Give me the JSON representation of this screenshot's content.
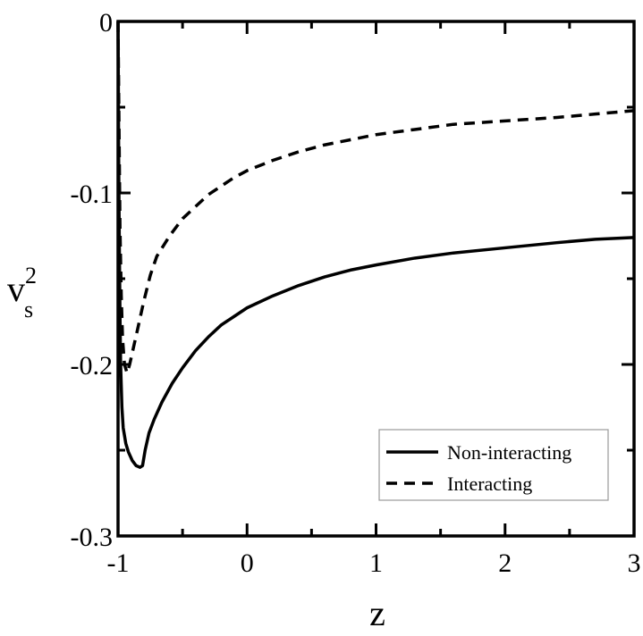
{
  "chart_data": {
    "type": "line",
    "title": "",
    "xlabel": "z",
    "ylabel": {
      "base": "v",
      "superscript": "2",
      "subscript": "s"
    },
    "xlim": [
      -1,
      3
    ],
    "ylim": [
      -0.3,
      0
    ],
    "x_ticks": [
      -1,
      0,
      1,
      2,
      3
    ],
    "x_tick_labels": [
      "-1",
      "0",
      "1",
      "2",
      "3"
    ],
    "y_ticks": [
      0,
      -0.1,
      -0.2,
      -0.3
    ],
    "y_tick_labels": [
      "0",
      "-0.1",
      "-0.2",
      "-0.3"
    ],
    "grid": false,
    "legend_position": "bottom-right",
    "series": [
      {
        "name": "Non-interacting",
        "style": "solid",
        "color": "#000000",
        "points": [
          [
            -1.0,
            0.0
          ],
          [
            -0.998,
            -0.03
          ],
          [
            -0.995,
            -0.08
          ],
          [
            -0.99,
            -0.13
          ],
          [
            -0.985,
            -0.17
          ],
          [
            -0.98,
            -0.2
          ],
          [
            -0.97,
            -0.225
          ],
          [
            -0.96,
            -0.237
          ],
          [
            -0.94,
            -0.246
          ],
          [
            -0.92,
            -0.251
          ],
          [
            -0.89,
            -0.256
          ],
          [
            -0.86,
            -0.259
          ],
          [
            -0.83,
            -0.26
          ],
          [
            -0.81,
            -0.259
          ],
          [
            -0.79,
            -0.25
          ],
          [
            -0.76,
            -0.24
          ],
          [
            -0.72,
            -0.232
          ],
          [
            -0.66,
            -0.222
          ],
          [
            -0.58,
            -0.211
          ],
          [
            -0.5,
            -0.202
          ],
          [
            -0.4,
            -0.192
          ],
          [
            -0.3,
            -0.184
          ],
          [
            -0.2,
            -0.177
          ],
          [
            -0.1,
            -0.172
          ],
          [
            0.0,
            -0.167
          ],
          [
            0.2,
            -0.16
          ],
          [
            0.4,
            -0.154
          ],
          [
            0.6,
            -0.149
          ],
          [
            0.8,
            -0.145
          ],
          [
            1.0,
            -0.142
          ],
          [
            1.3,
            -0.138
          ],
          [
            1.6,
            -0.135
          ],
          [
            2.0,
            -0.132
          ],
          [
            2.4,
            -0.129
          ],
          [
            2.7,
            -0.127
          ],
          [
            3.0,
            -0.126
          ]
        ]
      },
      {
        "name": "Interacting",
        "style": "dashed",
        "color": "#000000",
        "points": [
          [
            -1.0,
            0.0
          ],
          [
            -0.995,
            -0.04
          ],
          [
            -0.99,
            -0.08
          ],
          [
            -0.985,
            -0.12
          ],
          [
            -0.975,
            -0.16
          ],
          [
            -0.965,
            -0.185
          ],
          [
            -0.95,
            -0.2
          ],
          [
            -0.93,
            -0.205
          ],
          [
            -0.91,
            -0.2
          ],
          [
            -0.88,
            -0.19
          ],
          [
            -0.85,
            -0.18
          ],
          [
            -0.8,
            -0.163
          ],
          [
            -0.75,
            -0.148
          ],
          [
            -0.7,
            -0.137
          ],
          [
            -0.6,
            -0.125
          ],
          [
            -0.5,
            -0.115
          ],
          [
            -0.4,
            -0.108
          ],
          [
            -0.3,
            -0.101
          ],
          [
            -0.2,
            -0.096
          ],
          [
            -0.1,
            -0.091
          ],
          [
            0.0,
            -0.087
          ],
          [
            0.2,
            -0.081
          ],
          [
            0.4,
            -0.076
          ],
          [
            0.6,
            -0.072
          ],
          [
            0.8,
            -0.069
          ],
          [
            1.0,
            -0.066
          ],
          [
            1.3,
            -0.063
          ],
          [
            1.6,
            -0.06
          ],
          [
            2.0,
            -0.058
          ],
          [
            2.4,
            -0.056
          ],
          [
            2.7,
            -0.054
          ],
          [
            3.0,
            -0.052
          ]
        ]
      }
    ]
  }
}
